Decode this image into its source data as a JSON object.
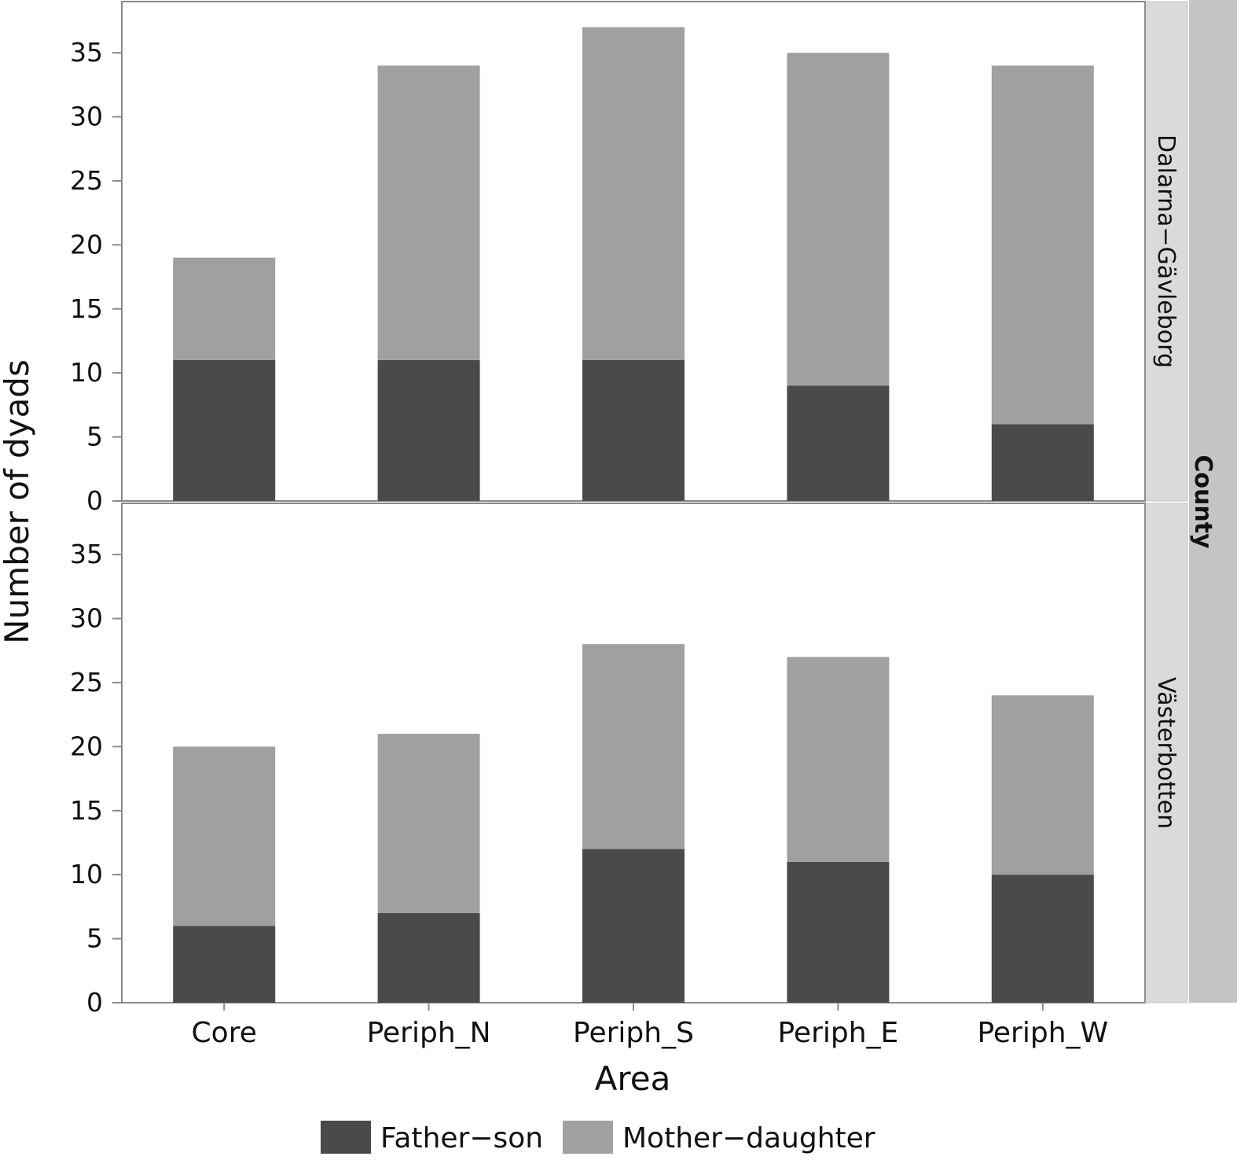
{
  "chart_data": {
    "type": "bar",
    "stacked": true,
    "categories": [
      "Core",
      "Periph_N",
      "Periph_S",
      "Periph_E",
      "Periph_W"
    ],
    "xlabel": "Area",
    "ylabel": "Number of dyads",
    "facet_title": "County",
    "ylim": [
      0,
      39
    ],
    "yticks": [
      0,
      5,
      10,
      15,
      20,
      25,
      30,
      35
    ],
    "legend_position": "bottom",
    "legend": [
      {
        "name": "Father−son",
        "color": "#4a4a4a"
      },
      {
        "name": "Mother−daughter",
        "color": "#a0a0a0"
      }
    ],
    "panels": [
      {
        "name": "Dalarna−Gävleborg",
        "series": [
          {
            "name": "Father−son",
            "values": [
              11,
              11,
              11,
              9,
              6
            ]
          },
          {
            "name": "Mother−daughter",
            "values": [
              8,
              23,
              26,
              26,
              28
            ]
          }
        ]
      },
      {
        "name": "Västerbotten",
        "series": [
          {
            "name": "Father−son",
            "values": [
              6,
              7,
              12,
              11,
              10
            ]
          },
          {
            "name": "Mother−daughter",
            "values": [
              14,
              14,
              16,
              16,
              14
            ]
          }
        ]
      }
    ]
  }
}
